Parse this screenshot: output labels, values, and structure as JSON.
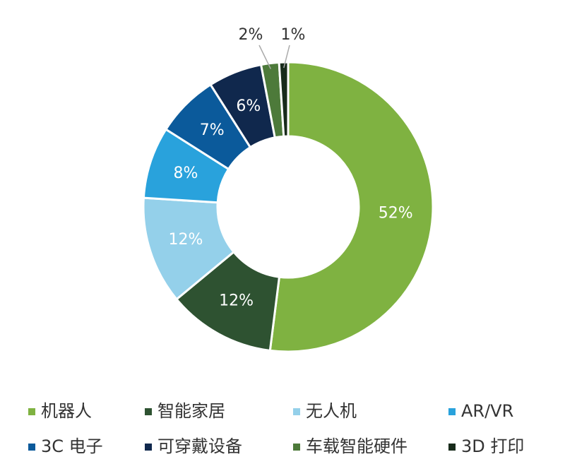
{
  "chart_data": {
    "type": "donut",
    "categories": [
      "机器人",
      "智能家居",
      "无人机",
      "AR/VR",
      "3C 电子",
      "可穿戴设备",
      "车载智能硬件",
      "3D 打印"
    ],
    "values": [
      52,
      12,
      12,
      8,
      7,
      6,
      2,
      1
    ],
    "value_labels": [
      "52%",
      "12%",
      "12%",
      "8%",
      "7%",
      "6%",
      "2%",
      "1%"
    ],
    "colors": [
      "#7fb241",
      "#2e5231",
      "#94d0ea",
      "#29a2dc",
      "#0b5a9b",
      "#10284d",
      "#4d7a3a",
      "#182b1b"
    ]
  }
}
